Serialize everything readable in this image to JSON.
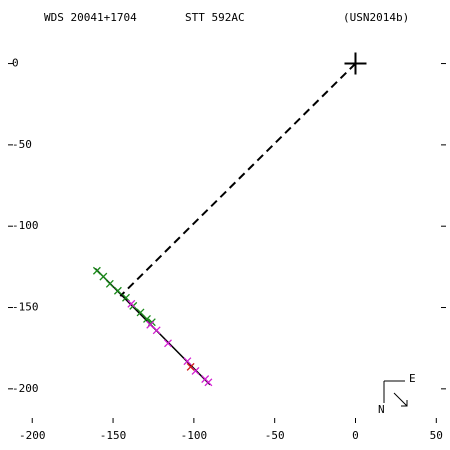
{
  "chart_data": {
    "type": "scatter",
    "header_left": "WDS 20041+1704",
    "header_center": "STT 592AC",
    "header_right": "(USN2014b)",
    "compass_e": "E",
    "compass_n": "N",
    "xlim": [
      -215,
      56
    ],
    "ylim": [
      -221,
      36
    ],
    "xticks": [
      -200,
      -150,
      -100,
      -50,
      0,
      50
    ],
    "yticks": [
      0,
      -50,
      -100,
      -150,
      -200
    ],
    "series": [
      {
        "color": "#000000",
        "style": "solid",
        "x": [
          -161,
          -90
        ],
        "y": [
          -126,
          -197.5
        ]
      },
      {
        "color": "#000000",
        "style": "dashed",
        "x": [
          0,
          -145.5
        ],
        "y": [
          0,
          -143
        ]
      },
      {
        "color": "#000000",
        "style": "plus",
        "x": [
          0
        ],
        "y": [
          0
        ]
      },
      {
        "color": "#1a8a1a",
        "style": "x",
        "x": [
          -160,
          -156,
          -152,
          -147,
          -142,
          -137.5,
          -133,
          -129,
          -126
        ],
        "y": [
          -127.4,
          -131,
          -135.4,
          -139.7,
          -144,
          -149,
          -153,
          -157,
          -159
        ]
      },
      {
        "color": "#d21ed2",
        "style": "x",
        "x": [
          -138.7,
          -127,
          -123,
          -116,
          -104,
          -99,
          -93,
          -91
        ],
        "y": [
          -147.7,
          -160.6,
          -164,
          -172,
          -183,
          -189,
          -194,
          -196
        ]
      },
      {
        "color": "#d21e1e",
        "style": "x",
        "x": [
          -102
        ],
        "y": [
          -186.5
        ]
      }
    ]
  }
}
